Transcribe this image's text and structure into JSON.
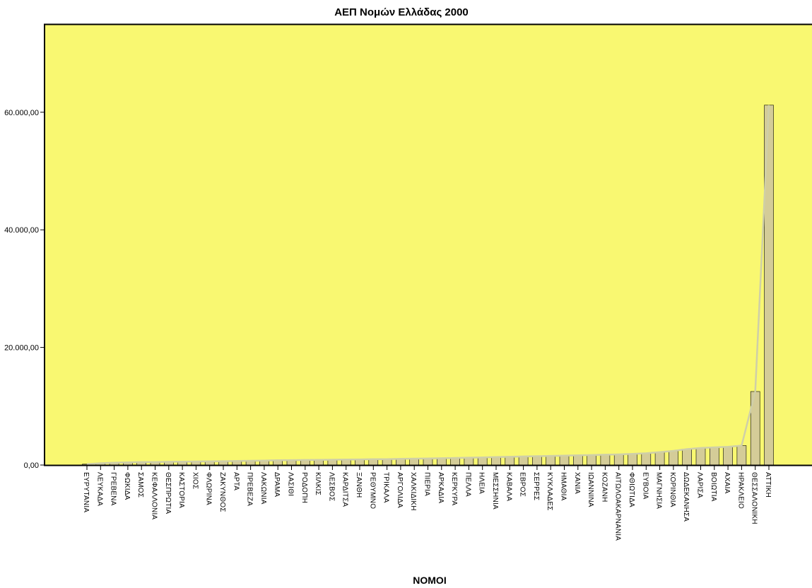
{
  "chart_data": {
    "type": "bar",
    "title": "ΑΕΠ Νομών Ελλάδας 2000",
    "xlabel": "ΝΟΜΟΙ",
    "ylabel": "",
    "ylim": [
      0,
      75000
    ],
    "yticks": [
      0,
      20000,
      40000,
      60000
    ],
    "ytick_labels": [
      "0,00",
      "20.000,00",
      "40.000,00",
      "60.000,00"
    ],
    "grid": false,
    "background_color": "#f9f871",
    "bar_color": "#d4cc98",
    "line_color": "#cfcfa8",
    "categories": [
      "ΕΥΡΥΤΑΝΙΑ",
      "ΛΕΥΚΑΔΑ",
      "ΓΡΕΒΕΝΑ",
      "ΦΩΚΙΔΑ",
      "ΣΑΜΟΣ",
      "ΚΕΦΑΛΛΟΝΙΑ",
      "ΘΕΣΠΡΩΤΙΑ",
      "ΚΑΣΤΟΡΙΑ",
      "ΧΙΟΣ",
      "ΦΛΩΡΙΝΑ",
      "ΖΑΚΥΝΘΟΣ",
      "ΑΡΤΑ",
      "ΠΡΕΒΕΖΑ",
      "ΛΑΚΩΝΙΑ",
      "ΔΡΑΜΑ",
      "ΛΑΣΙΘΙ",
      "ΡΟΔΟΠΗ",
      "ΚΙΛΚΙΣ",
      "ΛΕΣΒΟΣ",
      "ΚΑΡΔΙΤΣΑ",
      "ΞΑΝΘΗ",
      "ΡΕΘΥΜΝΟ",
      "ΤΡΙΚΑΛΑ",
      "ΑΡΓΟΛΙΔΑ",
      "ΧΑΛΚΙΔΙΚΗ",
      "ΠΙΕΡΙΑ",
      "ΑΡΚΑΔΙΑ",
      "ΚΕΡΚΥΡΑ",
      "ΠΕΛΛΑ",
      "ΗΛΕΙΑ",
      "ΜΕΣΣΗΝΙΑ",
      "ΚΑΒΑΛΑ",
      "ΕΒΡΟΣ",
      "ΣΕΡΡΕΣ",
      "ΚΥΚΛΑΔΕΣ",
      "ΗΜΑΘΙΑ",
      "ΧΑΝΙΑ",
      "ΙΩΑΝΝΙΝΑ",
      "ΚΟΖΑΝΗ",
      "ΑΙΤΩΛΟΑΚΑΡΝΑΝΙΑ",
      "ΦΘΙΩΤΙΔΑ",
      "ΕΥΒΟΙΑ",
      "ΜΑΓΝΗΣΙΑ",
      "ΚΟΡΙΝΘΙΑ",
      "ΔΩΔΕΚΑΝΗΣΑ",
      "ΛΑΡΙΣΑ",
      "ΒΟΙΩΤΙΑ",
      "ΑΧΑΙΑ",
      "ΗΡΑΚΛΕΙΟ",
      "ΘΕΣΣΑΛΟΝΙΚΗ",
      "ΑΤΤΙΚΗ"
    ],
    "values": [
      150,
      300,
      400,
      450,
      500,
      520,
      550,
      580,
      600,
      620,
      650,
      700,
      720,
      760,
      800,
      830,
      850,
      880,
      900,
      930,
      950,
      980,
      1000,
      1050,
      1080,
      1100,
      1150,
      1200,
      1250,
      1300,
      1350,
      1400,
      1450,
      1500,
      1550,
      1600,
      1650,
      1700,
      1750,
      1800,
      1900,
      2000,
      2200,
      2400,
      2700,
      2900,
      3000,
      3100,
      3300,
      12500,
      61200
    ]
  }
}
